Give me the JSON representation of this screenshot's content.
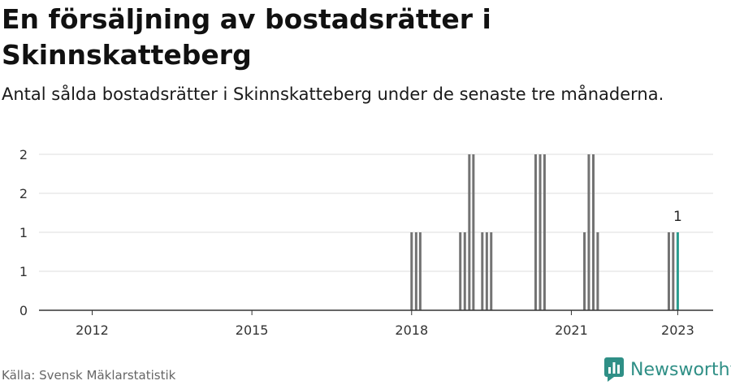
{
  "title": "En försäljning av bostadsrätter i Skinnskatteberg",
  "subtitle": "Antal sålda bostadsrätter i Skinnskatteberg under de senaste tre månaderna.",
  "source": "Källa: Svensk Mäklarstatistik",
  "brand": "Newsworthy",
  "colors": {
    "bar": "#737373",
    "highlight": "#2a9d8f",
    "grid": "#dddddd",
    "axis": "#333333",
    "brand": "#2f8f86"
  },
  "chart_data": {
    "type": "bar",
    "title": "En försäljning av bostadsrätter i Skinnskatteberg",
    "xlabel": "",
    "ylabel": "",
    "x_ticks": [
      "2012",
      "2015",
      "2018",
      "2021",
      "2023"
    ],
    "y_tick_labels": [
      "0",
      "1",
      "1",
      "2",
      "2"
    ],
    "ylim": [
      0,
      2
    ],
    "grid": true,
    "series": [
      {
        "dates": [
          "2018-01",
          "2018-02",
          "2018-03",
          "2018-12",
          "2019-01",
          "2019-02",
          "2019-03",
          "2019-05",
          "2019-06",
          "2019-07",
          "2020-05",
          "2020-06",
          "2020-07",
          "2021-04",
          "2021-05",
          "2021-06",
          "2021-07",
          "2022-11",
          "2022-12",
          "2023-01"
        ],
        "values": [
          1,
          1,
          1,
          1,
          1,
          2,
          2,
          1,
          1,
          1,
          2,
          2,
          2,
          1,
          2,
          2,
          1,
          1,
          1,
          1
        ]
      }
    ],
    "highlight_index": 19,
    "annotations": [
      {
        "date": "2023-01",
        "text": "1"
      }
    ]
  }
}
